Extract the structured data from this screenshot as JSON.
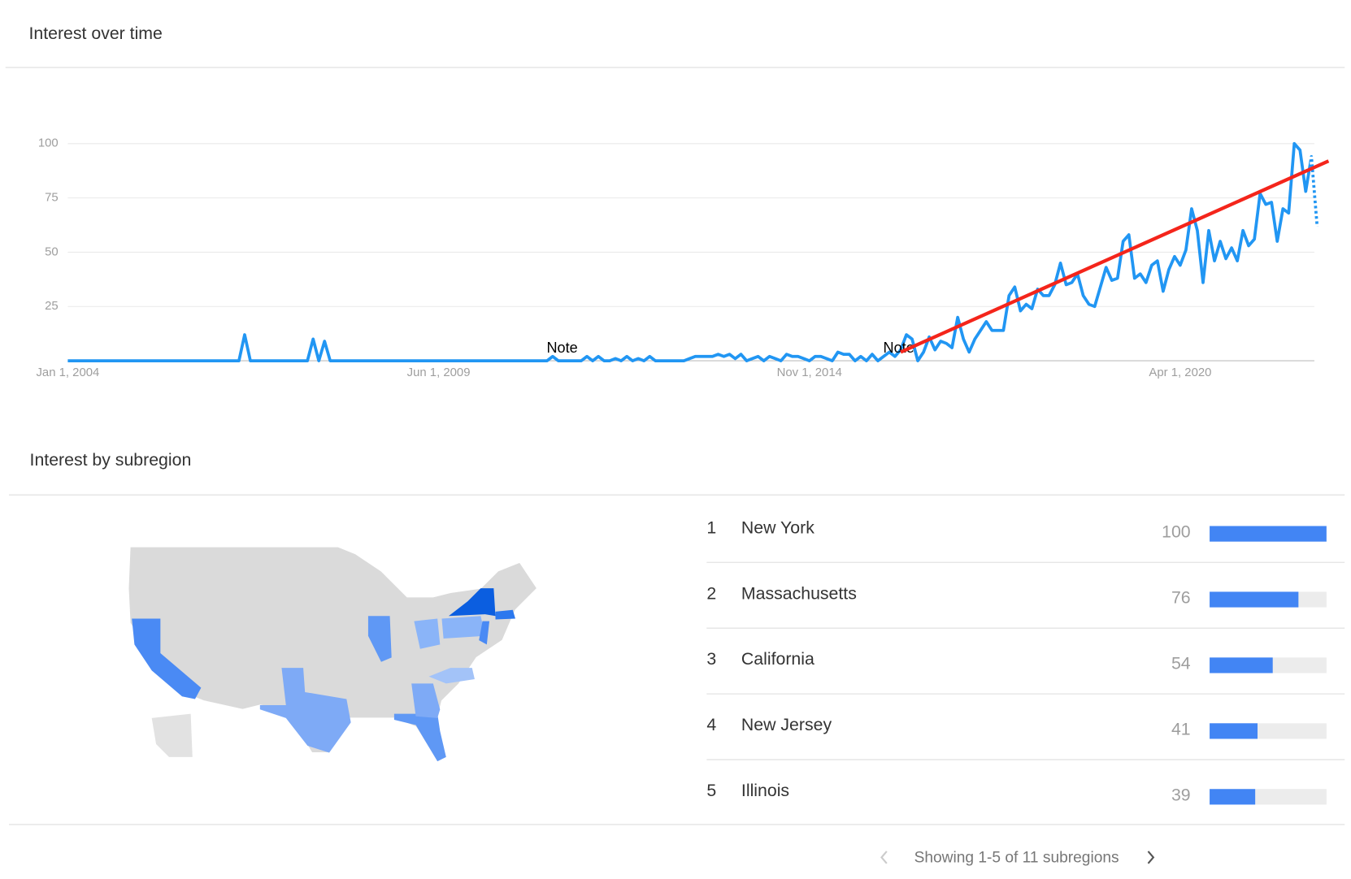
{
  "chart_data": {
    "type": "line",
    "title": "Interest over time",
    "categories": [
      "Jan 1, 2004",
      null,
      null,
      null,
      null,
      null,
      null,
      null,
      null,
      null,
      null,
      null,
      null,
      null,
      null,
      null,
      null,
      null,
      null,
      null,
      null,
      null,
      null,
      null,
      null,
      null,
      null,
      null,
      null,
      null,
      null,
      null,
      null,
      null,
      null,
      null,
      null,
      null,
      null,
      null,
      null,
      null,
      null,
      null,
      null,
      null,
      null,
      null,
      null,
      null,
      null,
      null,
      null,
      null,
      null,
      null,
      null,
      null,
      null,
      null,
      null,
      null,
      null,
      null,
      null,
      "Jun 1, 2009",
      null,
      null,
      null,
      null,
      null,
      null,
      null,
      null,
      null,
      null,
      null,
      null,
      null,
      null,
      null,
      null,
      null,
      null,
      null,
      null,
      null,
      null,
      null,
      null,
      null,
      null,
      null,
      null,
      null,
      null,
      null,
      null,
      null,
      null,
      null,
      null,
      null,
      null,
      null,
      null,
      null,
      null,
      null,
      null,
      null,
      null,
      null,
      null,
      null,
      null,
      null,
      null,
      null,
      null,
      null,
      null,
      null,
      null,
      null,
      null,
      null,
      null,
      null,
      null,
      "Nov 1, 2014",
      null,
      null,
      null,
      null,
      null,
      null,
      null,
      null,
      null,
      null,
      null,
      null,
      null,
      null,
      null,
      null,
      null,
      null,
      null,
      null,
      null,
      null,
      null,
      null,
      null,
      null,
      null,
      null,
      null,
      null,
      null,
      null,
      null,
      null,
      null,
      null,
      null,
      null,
      null,
      null,
      null,
      null,
      null,
      null,
      null,
      null,
      null,
      null,
      null,
      null,
      null,
      null,
      null,
      null,
      null,
      null,
      null,
      null,
      null,
      null,
      null,
      null,
      null,
      null,
      "Apr 1, 2020",
      null,
      null,
      null,
      null,
      null,
      null,
      null,
      null,
      null,
      null,
      null,
      null,
      null,
      null,
      null,
      null,
      null,
      null,
      null,
      null,
      null,
      null,
      null,
      null
    ],
    "values": [
      0,
      0,
      0,
      0,
      0,
      0,
      0,
      0,
      0,
      0,
      0,
      0,
      0,
      0,
      0,
      0,
      0,
      0,
      0,
      0,
      0,
      0,
      0,
      0,
      0,
      0,
      0,
      0,
      0,
      0,
      0,
      12,
      0,
      0,
      0,
      0,
      0,
      0,
      0,
      0,
      0,
      0,
      0,
      10,
      0,
      9,
      0,
      0,
      0,
      0,
      0,
      0,
      0,
      0,
      0,
      0,
      0,
      0,
      0,
      0,
      0,
      0,
      0,
      0,
      0,
      0,
      0,
      0,
      0,
      0,
      0,
      0,
      0,
      0,
      0,
      0,
      0,
      0,
      0,
      0,
      0,
      0,
      0,
      0,
      0,
      2,
      0,
      0,
      0,
      0,
      0,
      2,
      0,
      2,
      0,
      0,
      1,
      0,
      2,
      0,
      1,
      0,
      2,
      0,
      0,
      0,
      0,
      0,
      0,
      1,
      2,
      2,
      2,
      2,
      3,
      2,
      3,
      1,
      3,
      0,
      1,
      2,
      0,
      2,
      1,
      0,
      3,
      2,
      2,
      1,
      0,
      2,
      2,
      1,
      0,
      4,
      3,
      3,
      0,
      2,
      0,
      3,
      0,
      2,
      4,
      2,
      5,
      12,
      10,
      0,
      4,
      11,
      5,
      9,
      8,
      6,
      20,
      10,
      4,
      10,
      14,
      18,
      14,
      14,
      14,
      30,
      34,
      23,
      26,
      24,
      33,
      30,
      30,
      35,
      45,
      35,
      36,
      40,
      30,
      26,
      25,
      34,
      43,
      37,
      38,
      55,
      58,
      38,
      40,
      36,
      44,
      46,
      32,
      42,
      48,
      44,
      51,
      70,
      60,
      36,
      60,
      46,
      55,
      47,
      52,
      46,
      60,
      53,
      56,
      77,
      72,
      73,
      55,
      70,
      68,
      100,
      97,
      78,
      94,
      62
    ],
    "color": "#2196f3",
    "ylim": [
      0,
      100
    ],
    "yticks": [
      25,
      50,
      75,
      100
    ],
    "grid": true,
    "annotations": [
      {
        "text": "Note",
        "x": 85,
        "y": 0
      },
      {
        "text": "Note",
        "x": 144,
        "y": 0
      }
    ],
    "trend": {
      "color": "#f4251b",
      "x": [
        146,
        221
      ],
      "values": [
        4,
        92
      ]
    }
  },
  "subregion": {
    "title": "Interest by subregion",
    "color": "#4285f4",
    "rows": [
      {
        "rank": 1,
        "name": "New York",
        "value": 100
      },
      {
        "rank": 2,
        "name": "Massachusetts",
        "value": 76
      },
      {
        "rank": 3,
        "name": "California",
        "value": 54
      },
      {
        "rank": 4,
        "name": "New Jersey",
        "value": 41
      },
      {
        "rank": 5,
        "name": "Illinois",
        "value": 39
      }
    ],
    "footer": "Showing 1-5 of 11 subregions"
  }
}
